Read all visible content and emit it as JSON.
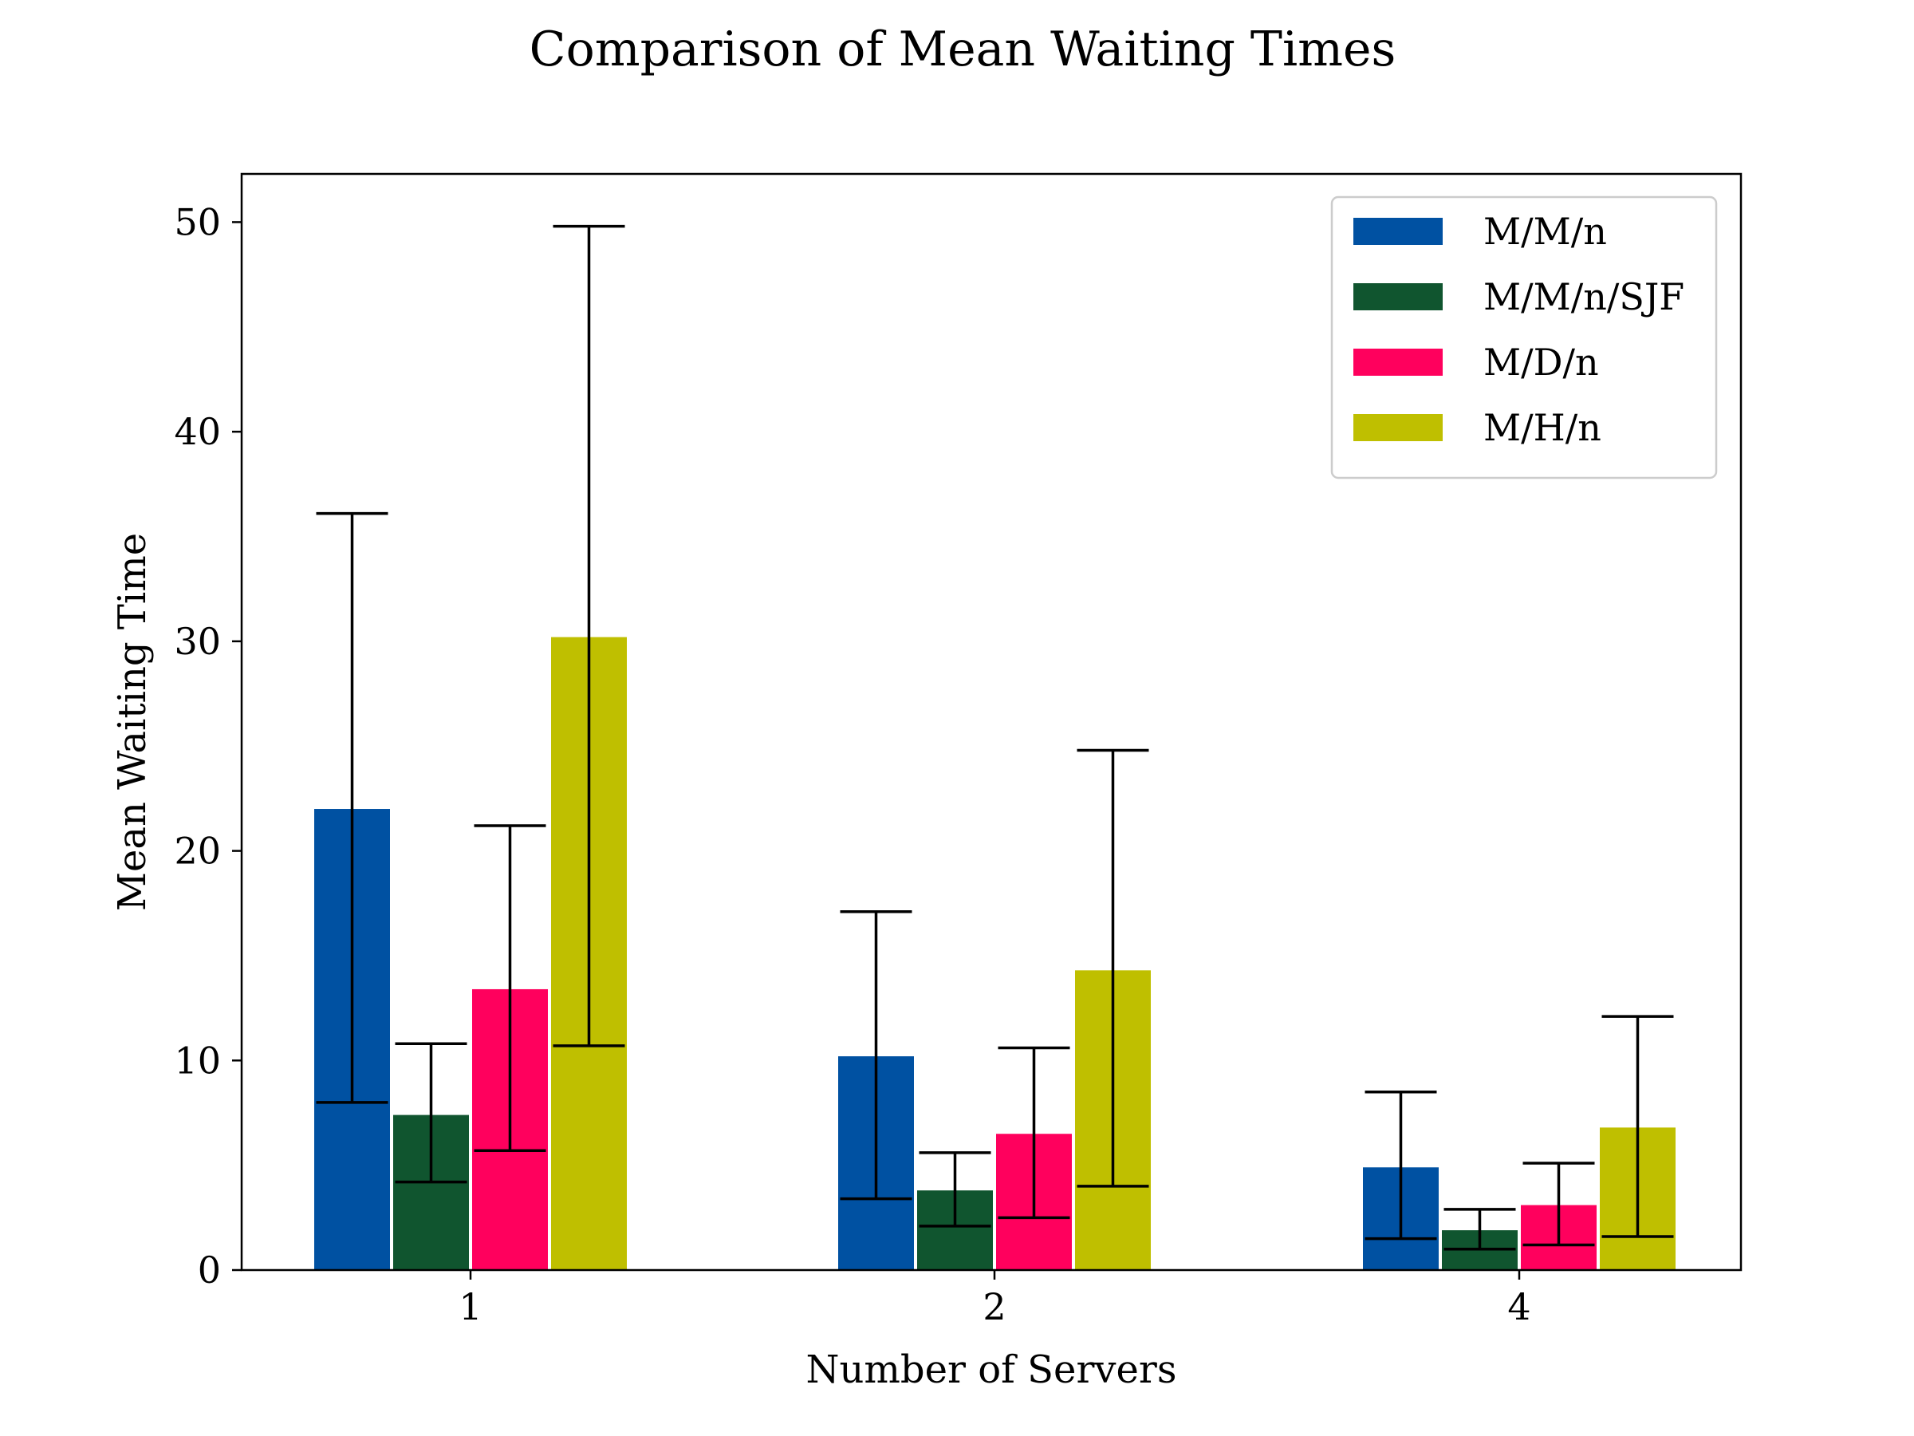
{
  "chart_data": {
    "type": "bar",
    "title": "Comparison of Mean Waiting Times",
    "xlabel": "Number of Servers",
    "ylabel": "Mean Waiting Time",
    "categories": [
      "1",
      "2",
      "4"
    ],
    "ylim": [
      0,
      52.3
    ],
    "yticks": [
      0,
      10,
      20,
      30,
      40,
      50
    ],
    "grid": false,
    "legend_position": "top-right",
    "series": [
      {
        "name": "M/M/n",
        "color": "#0051a2",
        "values": [
          22.0,
          10.2,
          4.9
        ],
        "err_low": [
          8.0,
          3.4,
          1.5
        ],
        "err_high": [
          36.1,
          17.1,
          8.5
        ]
      },
      {
        "name": "M/M/n/SJF",
        "color": "#10552f",
        "values": [
          7.4,
          3.8,
          1.9
        ],
        "err_low": [
          4.2,
          2.1,
          1.0
        ],
        "err_high": [
          10.8,
          5.6,
          2.9
        ]
      },
      {
        "name": "M/D/n",
        "color": "#ff005d",
        "values": [
          13.4,
          6.5,
          3.1
        ],
        "err_low": [
          5.7,
          2.5,
          1.2
        ],
        "err_high": [
          21.2,
          10.6,
          5.1
        ]
      },
      {
        "name": "M/H/n",
        "color": "#bfbf00",
        "values": [
          30.2,
          14.3,
          6.8
        ],
        "err_low": [
          10.7,
          4.0,
          1.6
        ],
        "err_high": [
          49.8,
          24.8,
          12.1
        ]
      }
    ]
  }
}
